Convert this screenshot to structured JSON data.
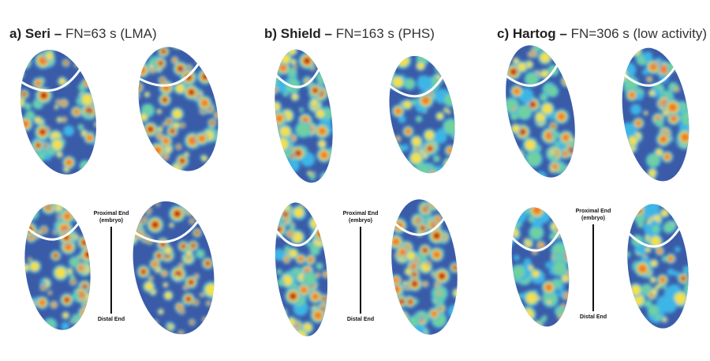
{
  "panels": [
    {
      "letter": "a)",
      "variety": "Seri",
      "dash": "–",
      "fn": "FN=63 s (LMA)"
    },
    {
      "letter": "b)",
      "variety": "Shield",
      "dash": "–",
      "fn": "FN=163 s (PHS)"
    },
    {
      "letter": "c)",
      "variety": "Hartog",
      "dash": "–",
      "fn": "FN=306 s (low activity)"
    }
  ],
  "axis_labels": {
    "proximal": "Proximal End\n(embryo)",
    "distal": "Distal End"
  },
  "colors": {
    "low": "#3a5ba8",
    "mid_low": "#3db5e6",
    "mid": "#6fd0a0",
    "mid_high": "#f4e04a",
    "high": "#f07a20",
    "max": "#b0120c",
    "embryo_ring": "#ffffff"
  }
}
